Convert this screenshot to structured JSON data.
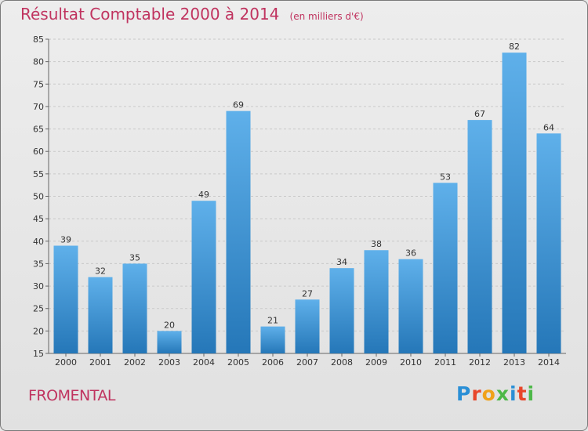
{
  "title": "Résultat Comptable 2000 à 2014",
  "unit": "(en milliers d'€)",
  "commune": "FROMENTAL",
  "logo": {
    "text": "Proxiti",
    "colors": [
      "#2a8fd6",
      "#e8462a",
      "#f0a21a",
      "#4db848",
      "#2a8fd6",
      "#e8462a",
      "#4db848"
    ]
  },
  "colors": {
    "bar_top": "#5fb0ea",
    "bar_bottom": "#2577b8",
    "title": "#c0335f"
  },
  "chart_data": {
    "type": "bar",
    "categories": [
      "2000",
      "2001",
      "2002",
      "2003",
      "2004",
      "2005",
      "2006",
      "2007",
      "2008",
      "2009",
      "2010",
      "2011",
      "2012",
      "2013",
      "2014"
    ],
    "values": [
      39,
      32,
      35,
      20,
      49,
      69,
      21,
      27,
      34,
      38,
      36,
      53,
      67,
      82,
      64
    ],
    "ylim": [
      15,
      85
    ],
    "yticks": [
      15,
      20,
      25,
      30,
      35,
      40,
      45,
      50,
      55,
      60,
      65,
      70,
      75,
      80,
      85
    ],
    "grid": true
  }
}
